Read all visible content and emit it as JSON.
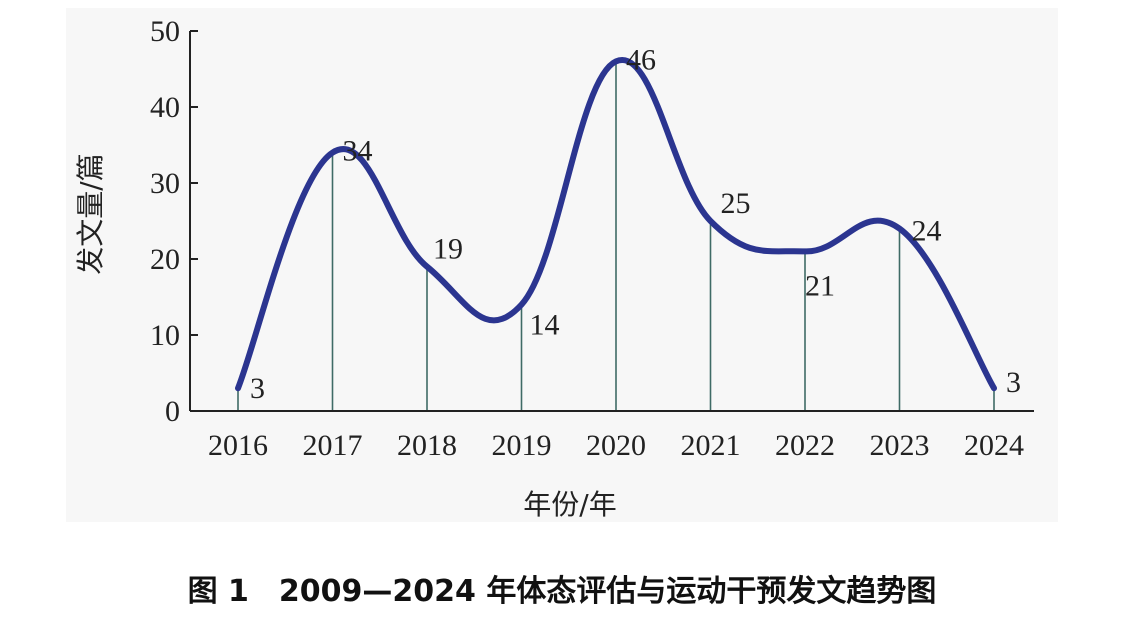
{
  "caption": "图 1　2009—2024 年体态评估与运动干预发文趋势图",
  "chart_data": {
    "type": "line",
    "title": "",
    "xlabel": "年份/年",
    "ylabel": "发文量/篇",
    "categories": [
      "2016",
      "2017",
      "2018",
      "2019",
      "2020",
      "2021",
      "2022",
      "2023",
      "2024"
    ],
    "values": [
      3,
      34,
      19,
      14,
      46,
      25,
      21,
      24,
      3
    ],
    "data_labels": [
      "3",
      "34",
      "19",
      "14",
      "46",
      "25",
      "21",
      "24",
      "3"
    ],
    "yticks": [
      "0",
      "10",
      "20",
      "30",
      "40",
      "50"
    ],
    "ylim": [
      0,
      50
    ],
    "grid": false,
    "smooth": true,
    "drop_lines": true,
    "line_color": "#2b3590",
    "drop_line_color": "#3f6b66",
    "background_color": "#f7f7f7"
  }
}
